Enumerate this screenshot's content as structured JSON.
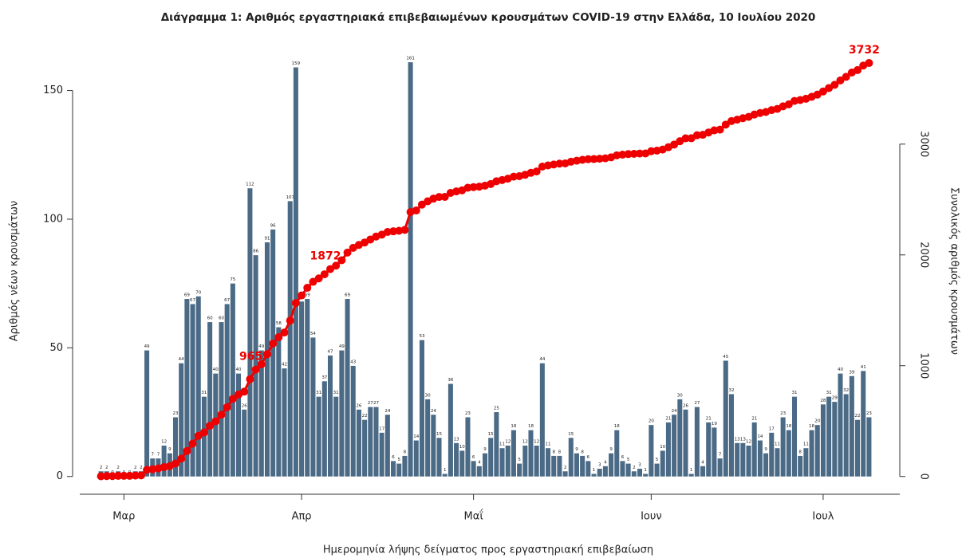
{
  "chart_data": {
    "type": "bar",
    "title": "Διάγραμμα 1: Αριθμός εργαστηριακά επιβεβαιωμένων κρουσμάτων COVID-19 στην Ελλάδα, 10 Ιουλίου 2020",
    "x_label": "Ημερομηνία λήψης δείγματος προς εργαστηριακή επιβεβαίωση",
    "y_label": "Αριθμός νέων κρουσμάτων",
    "y2_label": "Συνολικός αριθμός κρουσμάτων",
    "categories": [
      null,
      null,
      null,
      null,
      "Μαρ",
      null,
      null,
      null,
      null,
      null,
      null,
      null,
      null,
      null,
      null,
      null,
      null,
      null,
      null,
      null,
      null,
      null,
      null,
      null,
      null,
      null,
      null,
      null,
      null,
      null,
      null,
      null,
      null,
      null,
      null,
      "Απρ",
      null,
      null,
      null,
      null,
      null,
      null,
      null,
      null,
      null,
      null,
      null,
      null,
      null,
      null,
      null,
      null,
      null,
      null,
      null,
      null,
      null,
      null,
      null,
      null,
      null,
      null,
      null,
      null,
      null,
      "Μαΐ",
      null,
      null,
      null,
      null,
      null,
      null,
      null,
      null,
      null,
      null,
      null,
      null,
      null,
      null,
      null,
      null,
      null,
      null,
      null,
      null,
      null,
      null,
      null,
      null,
      null,
      null,
      null,
      null,
      null,
      null,
      "Ιουν",
      null,
      null,
      null,
      null,
      null,
      null,
      null,
      null,
      null,
      null,
      null,
      null,
      null,
      null,
      null,
      null,
      null,
      null,
      null,
      null,
      null,
      null,
      null,
      null,
      null,
      null,
      null,
      null,
      null,
      "Ιουλ",
      null,
      null,
      null,
      null,
      null,
      null,
      null,
      null
    ],
    "series": [
      {
        "type": "bar",
        "color": "#4b6a86",
        "values": [
          2,
          2,
          0,
          2,
          0,
          0,
          2,
          2,
          49,
          7,
          7,
          12,
          9,
          23,
          44,
          69,
          67,
          70,
          31,
          60,
          40,
          60,
          67,
          75,
          40,
          26,
          112,
          86,
          49,
          91,
          96,
          58,
          42,
          107,
          159,
          68,
          69,
          54,
          31,
          37,
          47,
          31,
          49,
          69,
          43,
          26,
          22,
          27,
          27,
          17,
          24,
          6,
          5,
          8,
          161,
          14,
          53,
          30,
          24,
          15,
          1,
          36,
          13,
          10,
          23,
          6,
          4,
          9,
          15,
          25,
          11,
          12,
          18,
          5,
          12,
          18,
          12,
          44,
          11,
          8,
          8,
          2,
          15,
          9,
          8,
          6,
          1,
          3,
          4,
          9,
          18,
          6,
          5,
          2,
          3,
          1,
          20,
          5,
          10,
          21,
          24,
          30,
          26,
          1,
          27,
          4,
          21,
          19,
          7,
          45,
          32,
          13,
          13,
          12,
          21,
          14,
          9,
          17,
          11,
          23,
          18,
          31,
          8,
          11,
          18,
          20,
          28,
          31,
          29,
          40,
          32,
          39,
          22,
          41,
          23
        ]
      },
      {
        "type": "line",
        "axis": "y2",
        "color": "#ee0000",
        "values": [
          2,
          4,
          4,
          6,
          6,
          6,
          8,
          10,
          59,
          66,
          73,
          85,
          94,
          117,
          161,
          230,
          297,
          367,
          398,
          458,
          498,
          558,
          625,
          700,
          740,
          766,
          878,
          965,
          1013,
          1104,
          1200,
          1258,
          1300,
          1407,
          1566,
          1634,
          1703,
          1757,
          1788,
          1825,
          1872,
          1903,
          1952,
          2021,
          2064,
          2090,
          2112,
          2139,
          2166,
          2183,
          2207,
          2213,
          2218,
          2226,
          2387,
          2401,
          2454,
          2484,
          2508,
          2523,
          2524,
          2560,
          2573,
          2583,
          2606,
          2612,
          2616,
          2625,
          2640,
          2665,
          2676,
          2688,
          2706,
          2711,
          2723,
          2741,
          2753,
          2797,
          2808,
          2816,
          2824,
          2826,
          2841,
          2850,
          2858,
          2864,
          2865,
          2868,
          2872,
          2881,
          2899,
          2905,
          2910,
          2912,
          2915,
          2916,
          2936,
          2941,
          2951,
          2972,
          2996,
          3026,
          3052,
          3053,
          3080,
          3084,
          3105,
          3124,
          3131,
          3176,
          3208,
          3221,
          3234,
          3246,
          3267,
          3281,
          3290,
          3307,
          3318,
          3341,
          3359,
          3390,
          3398,
          3409,
          3427,
          3447,
          3475,
          3506,
          3535,
          3575,
          3607,
          3646,
          3668,
          3709,
          3732
        ],
        "value_labels": [
          null,
          null,
          null,
          null,
          null,
          null,
          null,
          null,
          null,
          null,
          null,
          null,
          null,
          null,
          null,
          null,
          null,
          null,
          null,
          null,
          null,
          null,
          null,
          null,
          null,
          null,
          null,
          "965",
          null,
          null,
          null,
          null,
          null,
          null,
          null,
          null,
          null,
          null,
          null,
          null,
          "1872",
          null,
          null,
          null,
          null,
          null,
          null,
          null,
          null,
          null,
          null,
          null,
          null,
          null,
          null,
          null,
          null,
          null,
          null,
          null,
          null,
          null,
          null,
          null,
          null,
          null,
          null,
          null,
          null,
          null,
          null,
          null,
          null,
          null,
          null,
          null,
          null,
          null,
          null,
          null,
          null,
          null,
          null,
          null,
          null,
          null,
          null,
          null,
          null,
          null,
          null,
          null,
          null,
          null,
          null,
          null,
          null,
          null,
          null,
          null,
          null,
          null,
          null,
          null,
          null,
          null,
          null,
          null,
          null,
          null,
          null,
          null,
          null,
          null,
          null,
          null,
          null,
          null,
          null,
          null,
          null,
          null,
          null,
          null,
          null,
          null,
          null,
          null,
          null,
          null,
          null,
          null,
          null,
          null,
          "3732"
        ]
      }
    ],
    "ylim": [
      -10,
      166.6
    ],
    "yticks": [
      0,
      50,
      100,
      150
    ],
    "y2lim": [
      -232,
      3869
    ],
    "y2ticks": [
      0,
      1000,
      2000,
      3000
    ]
  }
}
